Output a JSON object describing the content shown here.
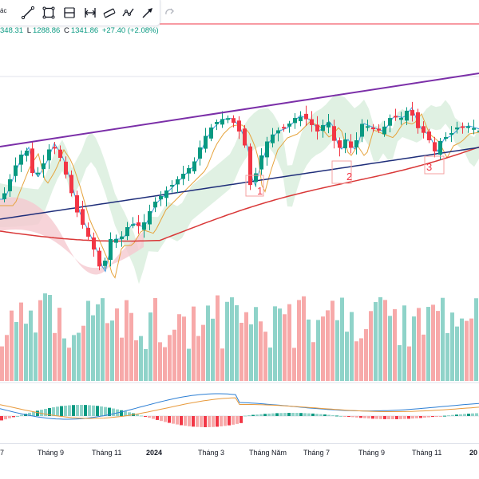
{
  "toolbar": {
    "partial_label": "ác",
    "tools": [
      {
        "name": "line-tool-icon",
        "label": ""
      },
      {
        "name": "rectangle-tool-icon",
        "label": ""
      },
      {
        "name": "fib-retracement-icon",
        "label": ""
      },
      {
        "name": "measure-tool-icon",
        "label": ""
      },
      {
        "name": "parallel-channel-icon",
        "label": ""
      },
      {
        "name": "path-tool-icon",
        "label": ""
      },
      {
        "name": "arrow-tool-icon",
        "label": ""
      },
      {
        "name": "redo-icon",
        "label": ""
      }
    ]
  },
  "ohlc": {
    "open_partial": "348.31",
    "low_label": "L",
    "low": "1288.86",
    "close_label": "C",
    "close": "1341.86",
    "change": "+27.40 (+2.08%)"
  },
  "wave_labels": [
    "1",
    "2",
    "3"
  ],
  "x_axis": {
    "ticks": [
      {
        "label": "7",
        "bold": false
      },
      {
        "label": "Tháng 9",
        "bold": false
      },
      {
        "label": "Tháng 11",
        "bold": false
      },
      {
        "label": "2024",
        "bold": true
      },
      {
        "label": "Tháng 3",
        "bold": false
      },
      {
        "label": "Tháng Năm",
        "bold": false
      },
      {
        "label": "Tháng 7",
        "bold": false
      },
      {
        "label": "Tháng 9",
        "bold": false
      },
      {
        "label": "Tháng 11",
        "bold": false
      },
      {
        "label": "20",
        "bold": true
      }
    ]
  },
  "colors": {
    "up": "#089981",
    "down": "#f23645",
    "vol_up": "#8fd3c9",
    "vol_down": "#f7a9a9",
    "trend_line": "#7b2fa8",
    "ma_long": "#1f2e7a",
    "ma_mid": "#d93838",
    "ma_fast": "#3b9be0",
    "ma_slow": "#e6a33c",
    "cloud_green": "#d6ecd9",
    "cloud_red": "#f5c9cf",
    "macd_line": "#2d7fd4",
    "signal_line": "#e89a3c"
  }
}
